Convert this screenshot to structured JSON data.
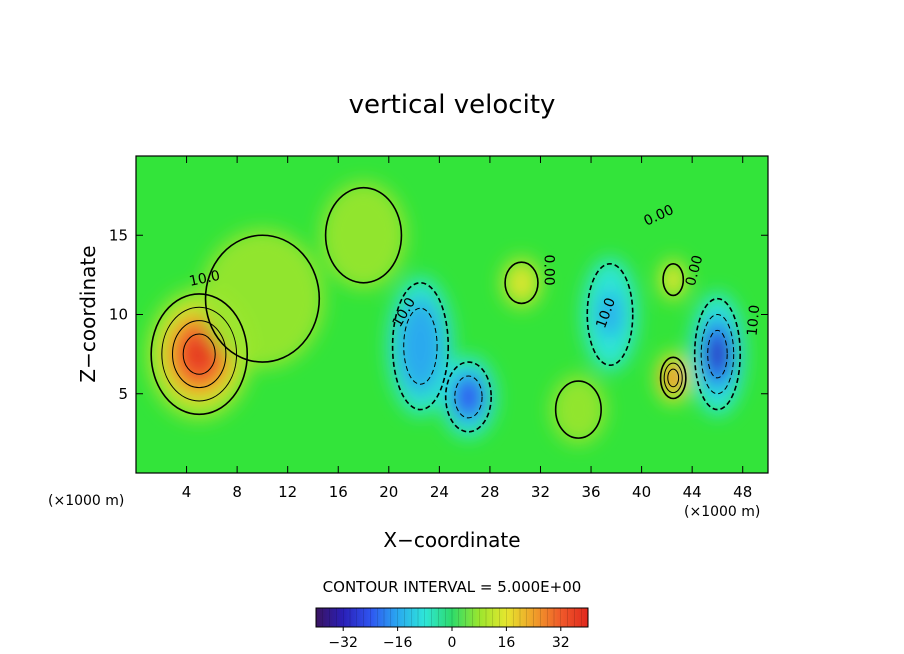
{
  "chart_data": {
    "type": "heatmap",
    "title": "vertical velocity",
    "xlabel": "X−coordinate",
    "ylabel": "Z−coordinate",
    "x_unit_label": "(×1000 m)",
    "z_unit_label": "(×1000 m)",
    "xlim": [
      0,
      50
    ],
    "ylim": [
      0,
      20
    ],
    "x_ticks": [
      4,
      8,
      12,
      16,
      20,
      24,
      28,
      32,
      36,
      40,
      44,
      48
    ],
    "y_ticks": [
      5,
      10,
      15
    ],
    "contour_interval_text": "CONTOUR INTERVAL = 5.000E+00",
    "colorbar": {
      "range": [
        -40,
        40
      ],
      "ticks": [
        -32,
        -16,
        0,
        16,
        32
      ],
      "tick_labels": [
        "−32",
        "−16",
        "0",
        "16",
        "32"
      ],
      "colors": [
        "#3a1460",
        "#2a1fb8",
        "#2f55f0",
        "#2aa8f0",
        "#2ee6d8",
        "#2edb6a",
        "#9be62e",
        "#e6e62e",
        "#f0a02a",
        "#f05a2a",
        "#e0281e"
      ]
    },
    "contour_labels": [
      {
        "text": "10.0",
        "x": 5.5,
        "z": 12.0,
        "rotate": -12
      },
      {
        "text": "10.0",
        "x": 21.5,
        "z": 10.0,
        "rotate": -60
      },
      {
        "text": "10.0",
        "x": 37.5,
        "z": 10.0,
        "rotate": -70
      },
      {
        "text": "10.0",
        "x": 49.2,
        "z": 9.6,
        "rotate": -85
      },
      {
        "text": "0.00",
        "x": 32.3,
        "z": 12.8,
        "rotate": 90
      },
      {
        "text": "0.00",
        "x": 41.5,
        "z": 16.0,
        "rotate": -25
      },
      {
        "text": "0.00",
        "x": 44.5,
        "z": 12.7,
        "rotate": -75
      }
    ],
    "features": [
      {
        "x": 5,
        "z": 7.5,
        "w": 40,
        "sx": 3.8,
        "sz": 3.8
      },
      {
        "x": 10,
        "z": 11,
        "w": 8,
        "sx": 4.5,
        "sz": 4
      },
      {
        "x": 22.5,
        "z": 8,
        "w": -20,
        "sx": 2.2,
        "sz": 4
      },
      {
        "x": 26.3,
        "z": 4.8,
        "w": -28,
        "sx": 1.8,
        "sz": 2.2
      },
      {
        "x": 30.5,
        "z": 12.0,
        "w": 12,
        "sx": 1.3,
        "sz": 1.3
      },
      {
        "x": 37.5,
        "z": 10,
        "w": -18,
        "sx": 1.8,
        "sz": 3.2
      },
      {
        "x": 42.5,
        "z": 6,
        "w": 30,
        "sx": 1.0,
        "sz": 1.3
      },
      {
        "x": 42.5,
        "z": 12.2,
        "w": 12,
        "sx": 0.8,
        "sz": 1.0
      },
      {
        "x": 46,
        "z": 7.5,
        "w": -30,
        "sx": 1.8,
        "sz": 3.5
      },
      {
        "x": 35,
        "z": 4,
        "w": 6,
        "sx": 1.8,
        "sz": 1.8
      },
      {
        "x": 18,
        "z": 15,
        "w": 4,
        "sx": 3.0,
        "sz": 3.0
      }
    ]
  }
}
